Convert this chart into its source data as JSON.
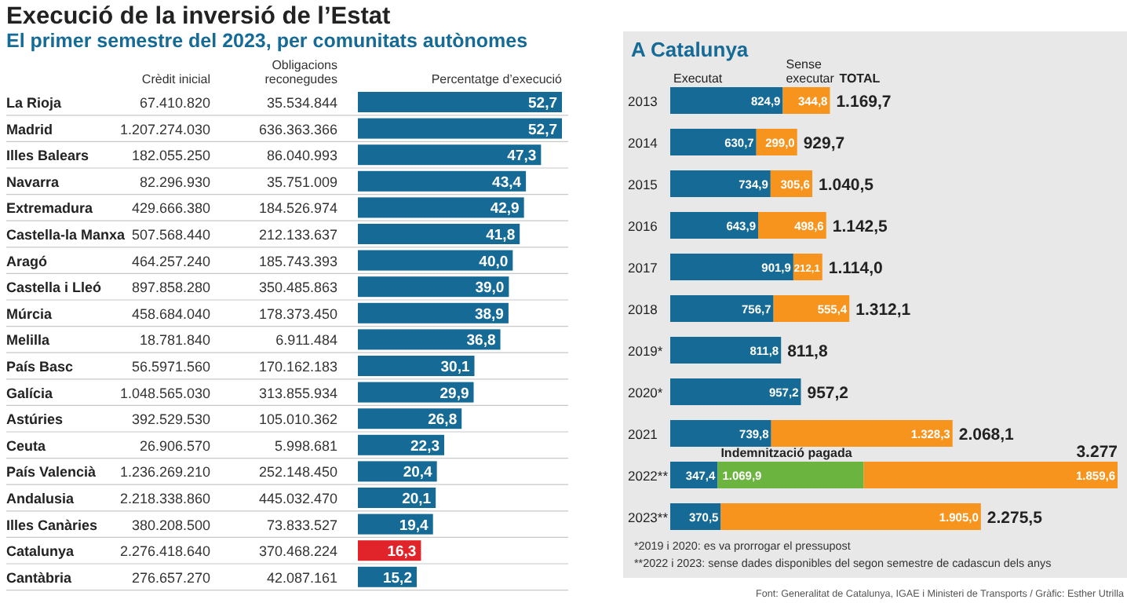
{
  "chart_data": [
    {
      "type": "bar",
      "orientation": "horizontal",
      "title": "Execució de la inversió de l’Estat",
      "subtitle": "El primer semestre del 2023, per comunitats autònomes",
      "xlabel": "Percentatge d’execució",
      "categories": [
        "La Rioja",
        "Madrid",
        "Illes Balears",
        "Navarra",
        "Extremadura",
        "Castella-la Manxa",
        "Aragó",
        "Castella i Lleó",
        "Múrcia",
        "Melilla",
        "País Basc",
        "Galícia",
        "Astúries",
        "Ceuta",
        "País Valencià",
        "Andalusia",
        "Illes Canàries",
        "Catalunya",
        "Cantàbria"
      ],
      "values": [
        52.7,
        52.7,
        47.3,
        43.4,
        42.9,
        41.8,
        40.0,
        39.0,
        38.9,
        36.8,
        30.1,
        29.9,
        26.8,
        22.3,
        20.4,
        20.1,
        19.4,
        16.3,
        15.2
      ],
      "value_labels": [
        "52,7",
        "52,7",
        "47,3",
        "43,4",
        "42,9",
        "41,8",
        "40,0",
        "39,0",
        "38,9",
        "36,8",
        "30,1",
        "29,9",
        "26,8",
        "22,3",
        "20,4",
        "20,1",
        "19,4",
        "16,3",
        "15,2"
      ],
      "colors": [
        "#156a96",
        "#156a96",
        "#156a96",
        "#156a96",
        "#156a96",
        "#156a96",
        "#156a96",
        "#156a96",
        "#156a96",
        "#156a96",
        "#156a96",
        "#156a96",
        "#156a96",
        "#156a96",
        "#156a96",
        "#156a96",
        "#156a96",
        "#e1232a",
        "#156a96"
      ],
      "annotations": [
        "Crèdit inicial",
        "Obligacions reconegudes",
        "67.410.820",
        "35.534.844",
        "1.207.274.030",
        "636.363.366",
        "182.055.250",
        "86.040.993",
        "82.296.930",
        "35.751.009",
        "429.666.380",
        "184.526.974",
        "507.568.440",
        "212.133.637",
        "464.257.240",
        "185.743.393",
        "897.858.280",
        "350.485.863",
        "458.684.040",
        "178.373.450",
        "18.781.840",
        "6.911.484",
        "56.5971.560",
        "170.162.183",
        "1.048.565.030",
        "313.855.934",
        "392.529.530",
        "105.010.362",
        "26.906.570",
        "5.998.681",
        "1.236.269.210",
        "252.148.450",
        "2.218.338.860",
        "445.032.470",
        "380.208.500",
        "73.833.527",
        "2.276.418.640",
        "370.468.224",
        "276.657.270",
        "42.087.161"
      ]
    },
    {
      "type": "bar",
      "orientation": "horizontal",
      "stacked": true,
      "title": "A Catalunya",
      "categories": [
        "2013",
        "2014",
        "2015",
        "2016",
        "2017",
        "2018",
        "2019*",
        "2020*",
        "2021",
        "2022**",
        "2023**"
      ],
      "series": [
        {
          "name": "Executat",
          "color": "#156a96",
          "values": [
            824.9,
            630.7,
            734.9,
            643.9,
            901.9,
            756.7,
            811.8,
            957.2,
            739.8,
            347.4,
            370.5
          ],
          "value_labels": [
            "824,9",
            "630,7",
            "734,9",
            "643,9",
            "901,9",
            "756,7",
            "811,8",
            "957,2",
            "739,8",
            "347,4",
            "370,5"
          ]
        },
        {
          "name": "Indemnització pagada",
          "color": "#6ab43f",
          "values": [
            null,
            null,
            null,
            null,
            null,
            null,
            null,
            null,
            null,
            1069.9,
            null
          ],
          "value_labels": [
            null,
            null,
            null,
            null,
            null,
            null,
            null,
            null,
            null,
            "1.069,9",
            null
          ]
        },
        {
          "name": "Sense executar",
          "color": "#f7941d",
          "values": [
            344.8,
            299.0,
            305.6,
            498.6,
            212.1,
            555.4,
            null,
            null,
            1328.3,
            1859.6,
            1905.0
          ],
          "value_labels": [
            "344,8",
            "299,0",
            "305,6",
            "498,6",
            "212,1",
            "555,4",
            null,
            null,
            "1.328,3",
            "1.859,6",
            "1.905,0"
          ]
        }
      ],
      "totals": [
        "1.169,7",
        "929,7",
        "1.040,5",
        "1.142,5",
        "1.114,0",
        "1.312,1",
        "811,8",
        "957,2",
        "2.068,1",
        "3.277",
        "2.275,5"
      ],
      "annotations": [
        "TOTAL",
        "*2019 i 2020: es va prorrogar el pressupost",
        "**2022 i 2023: sense dades disponibles del segon semestre de cadascun dels anys",
        "Font: Generalitat de Catalunya, IGAE i Ministeri de Transports / Gràfic: Esther Utrilla"
      ]
    }
  ]
}
